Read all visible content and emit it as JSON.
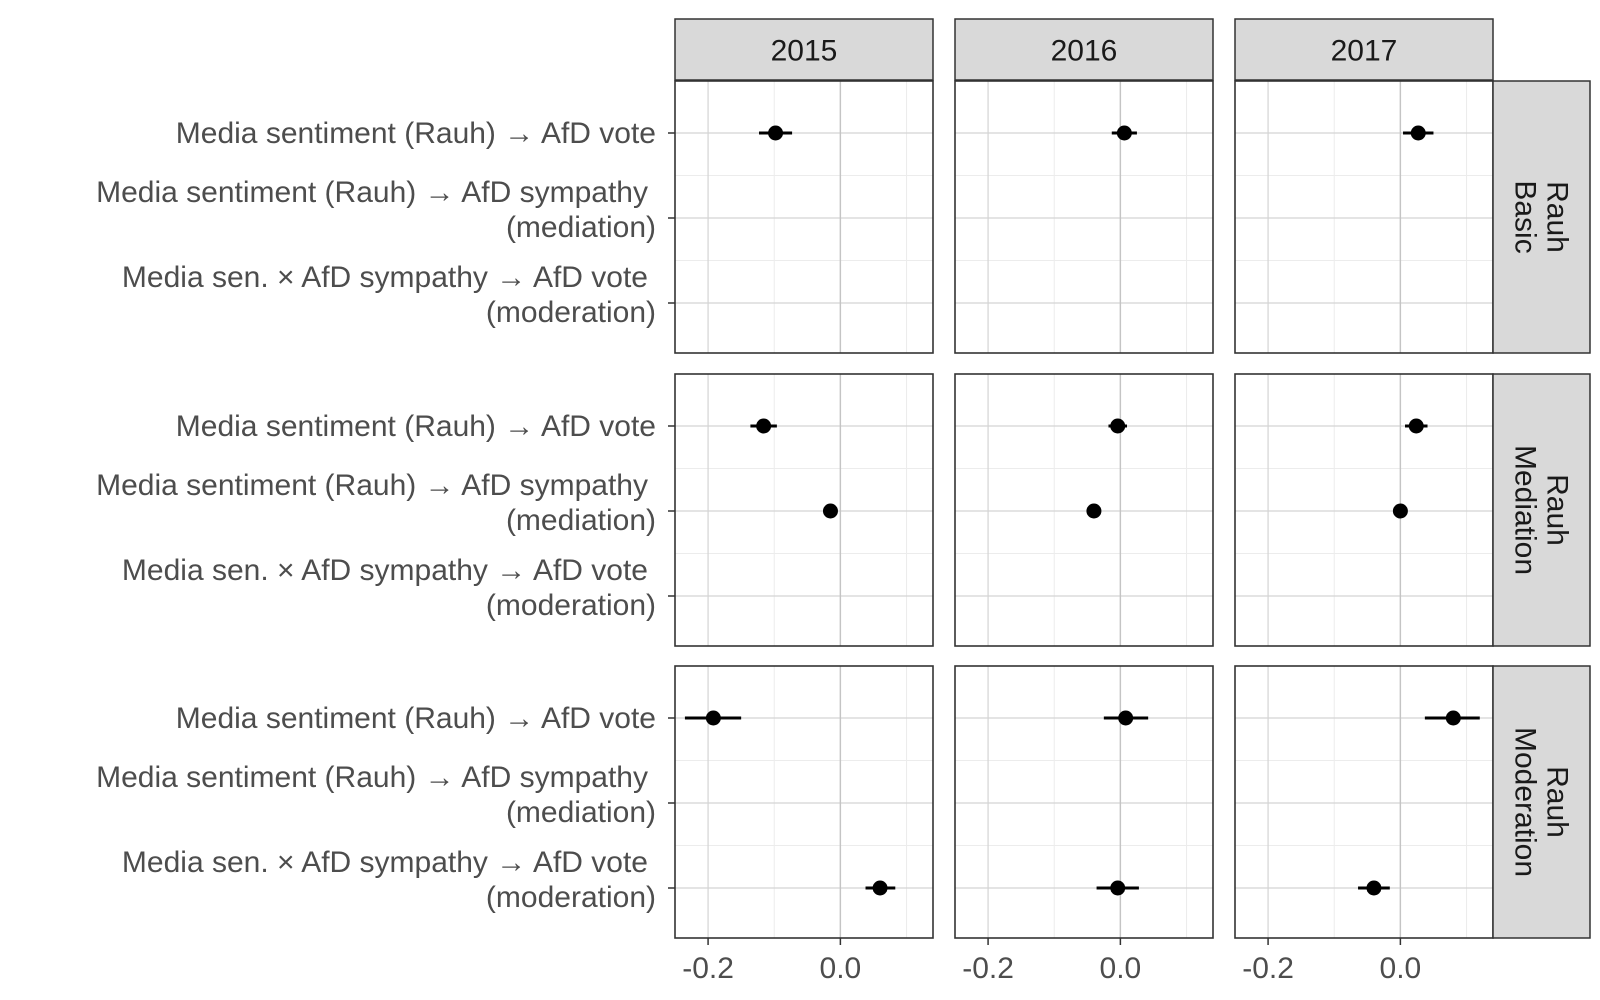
{
  "chart_data": {
    "type": "scatter",
    "subtype": "faceted-coefficient-plot",
    "title": "",
    "xlabel": "",
    "ylabel": "",
    "xlim": [
      -0.25,
      0.14
    ],
    "x_ticks": [
      -0.2,
      0.0
    ],
    "x_tick_labels": [
      "-0.2",
      "0.0"
    ],
    "grid": true,
    "zero_reference_line": true,
    "columns": [
      "2015",
      "2016",
      "2017"
    ],
    "rows": [
      {
        "label_line1": "Rauh",
        "label_line2": "Basic"
      },
      {
        "label_line1": "Rauh",
        "label_line2": "Mediation"
      },
      {
        "label_line1": "Rauh",
        "label_line2": "Moderation"
      }
    ],
    "terms": [
      {
        "line1": "Media sentiment (Rauh) → AfD vote",
        "line2": ""
      },
      {
        "line1": "Media sentiment (Rauh) → AfD sympathy",
        "line2": "(mediation)"
      },
      {
        "line1": "Media sen. × AfD sympathy → AfD vote",
        "line2": "(moderation)"
      }
    ],
    "points": [
      {
        "row": 0,
        "col": 0,
        "term": 0,
        "estimate": -0.098,
        "lower": -0.123,
        "upper": -0.073
      },
      {
        "row": 0,
        "col": 1,
        "term": 0,
        "estimate": 0.006,
        "lower": -0.013,
        "upper": 0.025
      },
      {
        "row": 0,
        "col": 2,
        "term": 0,
        "estimate": 0.027,
        "lower": 0.004,
        "upper": 0.05
      },
      {
        "row": 1,
        "col": 0,
        "term": 0,
        "estimate": -0.116,
        "lower": -0.136,
        "upper": -0.096
      },
      {
        "row": 1,
        "col": 0,
        "term": 1,
        "estimate": -0.015,
        "lower": -0.025,
        "upper": -0.005
      },
      {
        "row": 1,
        "col": 1,
        "term": 0,
        "estimate": -0.004,
        "lower": -0.018,
        "upper": 0.01
      },
      {
        "row": 1,
        "col": 1,
        "term": 1,
        "estimate": -0.04,
        "lower": -0.05,
        "upper": -0.03
      },
      {
        "row": 1,
        "col": 2,
        "term": 0,
        "estimate": 0.024,
        "lower": 0.007,
        "upper": 0.041
      },
      {
        "row": 1,
        "col": 2,
        "term": 1,
        "estimate": 0.0,
        "lower": -0.009,
        "upper": 0.009
      },
      {
        "row": 2,
        "col": 0,
        "term": 0,
        "estimate": -0.192,
        "lower": -0.235,
        "upper": -0.15
      },
      {
        "row": 2,
        "col": 0,
        "term": 2,
        "estimate": 0.06,
        "lower": 0.038,
        "upper": 0.083
      },
      {
        "row": 2,
        "col": 1,
        "term": 0,
        "estimate": 0.008,
        "lower": -0.025,
        "upper": 0.042
      },
      {
        "row": 2,
        "col": 1,
        "term": 2,
        "estimate": -0.004,
        "lower": -0.036,
        "upper": 0.028
      },
      {
        "row": 2,
        "col": 2,
        "term": 0,
        "estimate": 0.08,
        "lower": 0.037,
        "upper": 0.12
      },
      {
        "row": 2,
        "col": 2,
        "term": 2,
        "estimate": -0.04,
        "lower": -0.064,
        "upper": -0.016
      }
    ],
    "colors": {
      "strip_fill": "#d9d9d9",
      "panel_border": "#333333",
      "major_grid": "#d4d4d4",
      "minor_grid": "#ececec",
      "point": "#000000",
      "label_text": "#4d4d4d",
      "strip_text": "#1a1a1a"
    }
  }
}
